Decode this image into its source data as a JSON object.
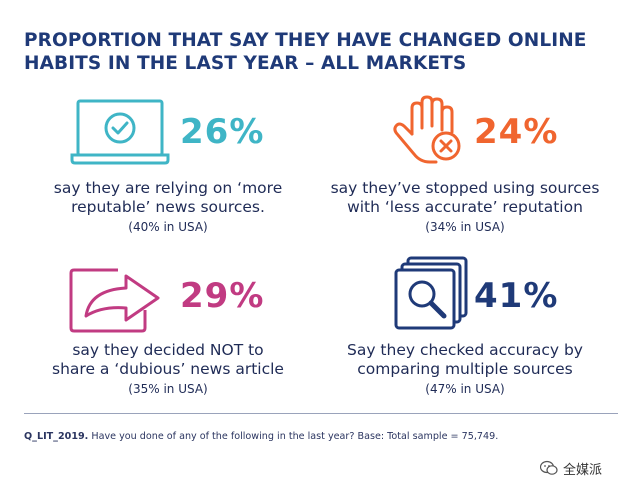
{
  "title": {
    "line1": "PROPORTION THAT SAY THEY HAVE CHANGED ONLINE",
    "line2": "HABITS IN THE LAST YEAR – ALL MARKETS"
  },
  "chart_data": {
    "type": "table",
    "title": "PROPORTION THAT SAY THEY HAVE CHANGED ONLINE HABITS IN THE LAST YEAR – ALL MARKETS",
    "items": [
      {
        "value": "26%",
        "number": 26,
        "color": "#3fb5c6",
        "icon": "laptop-check-icon",
        "desc": [
          "say they are relying on ‘more",
          "reputable’ news sources."
        ],
        "usa": "(40% in USA)"
      },
      {
        "value": "24%",
        "number": 24,
        "color": "#f0652f",
        "icon": "stop-hand-icon",
        "desc": [
          "say they’ve stopped using sources",
          "with ‘less accurate’ reputation"
        ],
        "usa": "(34% in USA)"
      },
      {
        "value": "29%",
        "number": 29,
        "color": "#c13b82",
        "icon": "share-arrow-icon",
        "desc": [
          "say they decided NOT to",
          "share a ‘dubious’ news article"
        ],
        "usa": "(35% in USA)"
      },
      {
        "value": "41%",
        "number": 41,
        "color": "#1f3a78",
        "icon": "magnifier-pages-icon",
        "desc": [
          "Say they checked accuracy by",
          "comparing multiple sources"
        ],
        "usa": "(47% in USA)"
      }
    ]
  },
  "footer": {
    "code": "Q_LIT_2019.",
    "text": " Have you done of any of the following in the last year? Base: Total sample = 75,749."
  },
  "watermark": {
    "text": "全媒派",
    "icon": "wechat-icon"
  }
}
